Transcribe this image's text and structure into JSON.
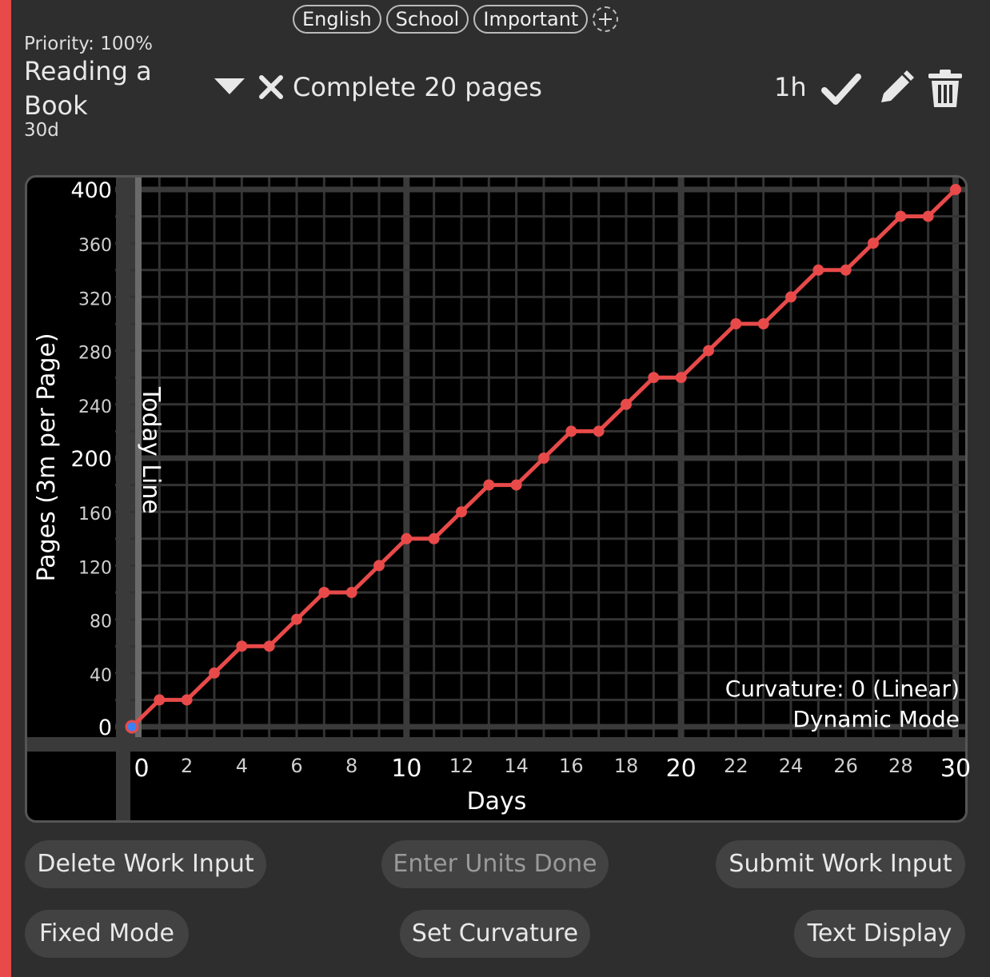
{
  "tags": [
    "English",
    "School",
    "Important"
  ],
  "assignment": {
    "priority": "Priority: 100%",
    "title": "Reading a Book",
    "due": "30d",
    "goal": "Complete 20 pages",
    "time_estimate": "1h"
  },
  "colors": {
    "accent": "#e84a4a",
    "line": "#e84a4a",
    "start_dot": "#3b82f6",
    "background": "#2e2e2e",
    "graph_background": "#000000",
    "button": "#424242"
  },
  "icons": {
    "expand": "triangle-down-icon",
    "status": "x-icon",
    "complete": "check-icon",
    "edit": "pencil-icon",
    "delete": "trash-icon",
    "add_tag": "plus-circle-icon"
  },
  "graph": {
    "today_line_label": "Today Line",
    "curvature_label": "Curvature: 0 (Linear)",
    "mode_label": "Dynamic Mode"
  },
  "chart_data": {
    "type": "line",
    "xlabel": "Days",
    "ylabel": "Pages (3m per Page)",
    "xlim": [
      0,
      30
    ],
    "ylim": [
      0,
      400
    ],
    "x_ticks": [
      0,
      2,
      4,
      6,
      8,
      10,
      12,
      14,
      16,
      18,
      20,
      22,
      24,
      26,
      28,
      30
    ],
    "x_major_ticks": [
      0,
      10,
      20,
      30
    ],
    "y_ticks": [
      0,
      40,
      80,
      120,
      160,
      200,
      240,
      280,
      320,
      360,
      400
    ],
    "y_major_ticks": [
      0,
      200,
      400
    ],
    "grid": true,
    "today": 0,
    "series": [
      {
        "x": [
          0,
          1,
          2,
          3,
          4,
          5,
          6,
          7,
          8,
          9,
          10,
          11,
          12,
          13,
          14,
          15,
          16,
          17,
          18,
          19,
          20,
          21,
          22,
          23,
          24,
          25,
          26,
          27,
          28,
          29,
          30
        ],
        "y": [
          0,
          20,
          20,
          40,
          60,
          60,
          80,
          100,
          100,
          120,
          140,
          140,
          160,
          180,
          180,
          200,
          220,
          220,
          240,
          260,
          260,
          280,
          300,
          300,
          320,
          340,
          340,
          360,
          380,
          380,
          400
        ]
      }
    ]
  },
  "buttons": {
    "delete_work_input": "Delete Work Input",
    "enter_units_done": "Enter Units Done",
    "submit_work_input": "Submit Work Input",
    "fixed_mode": "Fixed Mode",
    "set_curvature": "Set Curvature",
    "text_display": "Text Display"
  }
}
